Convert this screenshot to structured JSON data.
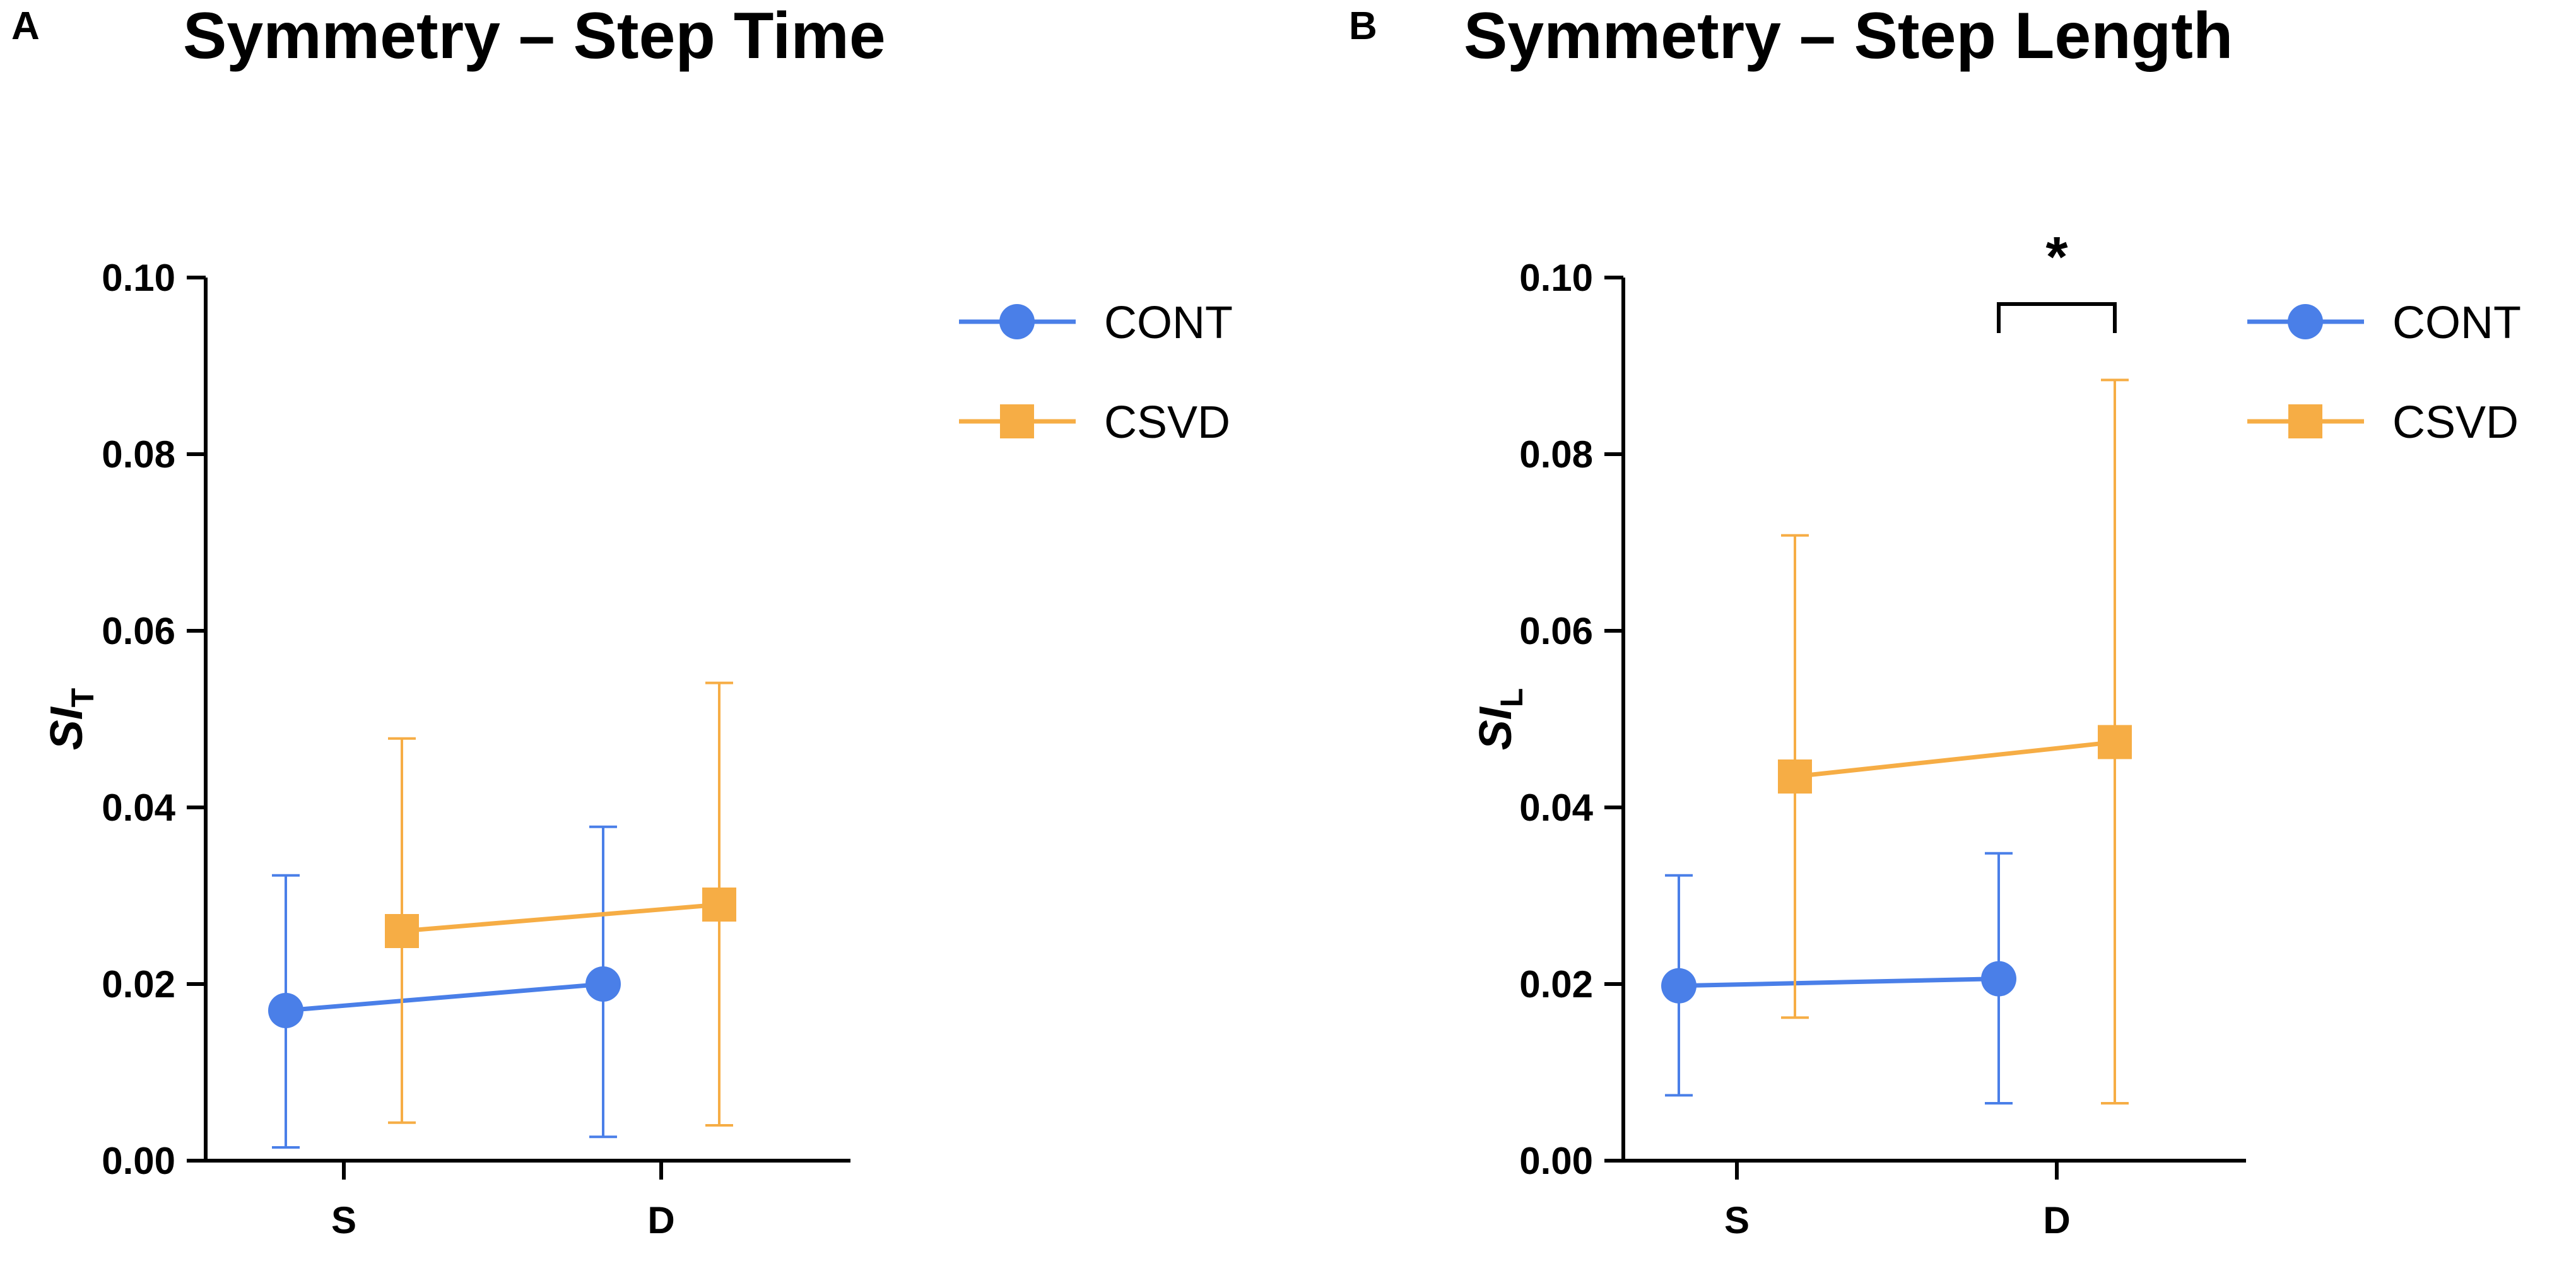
{
  "colors": {
    "cont": "#4A7FE8",
    "csvd": "#F6AD45",
    "axis": "#000000"
  },
  "legend": [
    {
      "name": "CONT",
      "marker": "circle",
      "color_key": "cont"
    },
    {
      "name": "CSVD",
      "marker": "square",
      "color_key": "csvd"
    }
  ],
  "chart_data": [
    {
      "type": "line",
      "panel": "A",
      "title": "Symmetry – Step Time",
      "xlabel": "",
      "ylabel": "SI",
      "ylabel_sub": "T",
      "ylim": [
        0,
        0.1
      ],
      "yticks": [
        "0.00",
        "0.02",
        "0.04",
        "0.06",
        "0.08",
        "0.10"
      ],
      "ytick_values": [
        0,
        0.02,
        0.04,
        0.06,
        0.08,
        0.1
      ],
      "categories": [
        "S",
        "D"
      ],
      "series": [
        {
          "name": "CONT",
          "marker": "circle",
          "values": [
            0.017,
            0.02
          ],
          "err_low": [
            0.0015,
            0.0027
          ],
          "err_high": [
            0.0323,
            0.0378
          ]
        },
        {
          "name": "CSVD",
          "marker": "square",
          "values": [
            0.026,
            0.029
          ],
          "err_low": [
            0.0043,
            0.004
          ],
          "err_high": [
            0.0478,
            0.0541
          ]
        }
      ],
      "significance": null
    },
    {
      "type": "line",
      "panel": "B",
      "title": "Symmetry – Step Length",
      "xlabel": "",
      "ylabel": "SI",
      "ylabel_sub": "L",
      "ylim": [
        0,
        0.1
      ],
      "yticks": [
        "0.00",
        "0.02",
        "0.04",
        "0.06",
        "0.08",
        "0.10"
      ],
      "ytick_values": [
        0,
        0.02,
        0.04,
        0.06,
        0.08,
        0.1
      ],
      "categories": [
        "S",
        "D"
      ],
      "series": [
        {
          "name": "CONT",
          "marker": "circle",
          "values": [
            0.0198,
            0.0206
          ],
          "err_low": [
            0.0074,
            0.0065
          ],
          "err_high": [
            0.0323,
            0.0348
          ]
        },
        {
          "name": "CSVD",
          "marker": "square",
          "values": [
            0.0435,
            0.0474
          ],
          "err_low": [
            0.0162,
            0.0065
          ],
          "err_high": [
            0.0708,
            0.0884
          ]
        }
      ],
      "significance": {
        "category": "D",
        "label": "*"
      }
    }
  ]
}
